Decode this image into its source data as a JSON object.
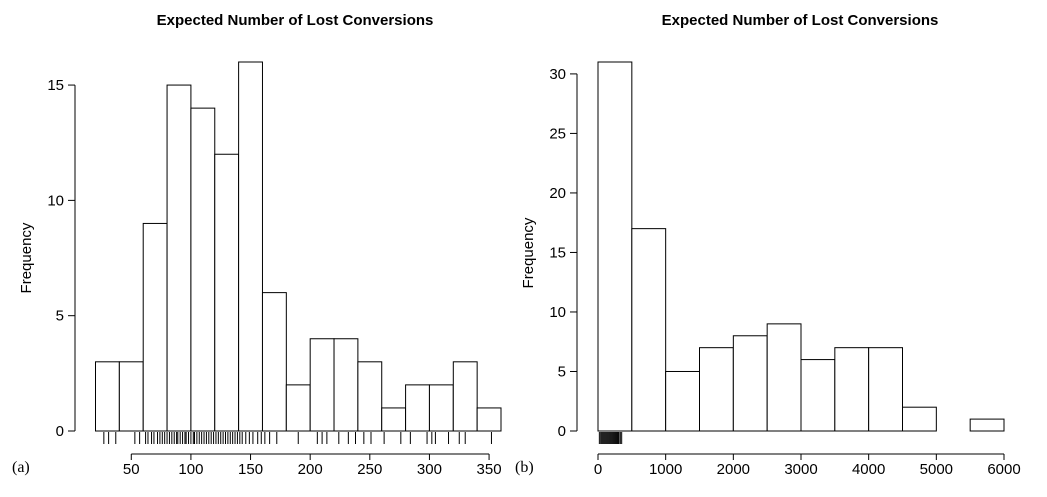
{
  "chart_data": [
    {
      "type": "histogram",
      "title": "Expected Number of Lost Conversions",
      "ylabel": "Frequency",
      "xlabel": "",
      "panel_label": "(a)",
      "bin_width": 20,
      "bins_start": 20,
      "bin_edges": [
        20,
        40,
        60,
        80,
        100,
        120,
        140,
        160,
        180,
        200,
        220,
        240,
        260,
        280,
        300,
        320,
        340,
        360
      ],
      "counts": [
        3,
        3,
        9,
        15,
        14,
        12,
        16,
        6,
        2,
        4,
        4,
        3,
        1,
        2,
        2,
        3,
        1
      ],
      "xlim": [
        20,
        360
      ],
      "ylim": [
        0,
        16
      ],
      "x_ticks": [
        50,
        100,
        150,
        200,
        250,
        300,
        350
      ],
      "y_ticks": [
        0,
        5,
        10,
        15
      ],
      "x_tick_labels": [
        "50",
        "100",
        "150",
        "200",
        "250",
        "300",
        "350"
      ],
      "y_tick_labels": [
        "0",
        "5",
        "10",
        "15"
      ],
      "rug": [
        27,
        31,
        37,
        53,
        57,
        62,
        64,
        67,
        69,
        72,
        74,
        76,
        78,
        80,
        82,
        84,
        86,
        88,
        89,
        91,
        93,
        95,
        96,
        98,
        100,
        102,
        103,
        105,
        107,
        109,
        111,
        113,
        115,
        117,
        119,
        121,
        123,
        125,
        127,
        129,
        131,
        133,
        135,
        137,
        139,
        141,
        143,
        146,
        149,
        152,
        156,
        159,
        162,
        166,
        172,
        190,
        206,
        210,
        214,
        224,
        232,
        238,
        245,
        251,
        262,
        276,
        284,
        298,
        302,
        305,
        316,
        325,
        330,
        352
      ]
    },
    {
      "type": "histogram",
      "title": "Expected Number of Lost Conversions",
      "ylabel": "Frequency",
      "xlabel": "",
      "panel_label": "(b)",
      "bin_width": 500,
      "bins_start": 0,
      "bin_edges": [
        0,
        500,
        1000,
        1500,
        2000,
        2500,
        3000,
        3500,
        4000,
        4500,
        5000,
        5500,
        6000
      ],
      "counts": [
        31,
        17,
        5,
        7,
        8,
        9,
        6,
        7,
        7,
        2,
        0,
        1
      ],
      "xlim": [
        0,
        6000
      ],
      "ylim": [
        0,
        31
      ],
      "x_ticks": [
        0,
        1000,
        2000,
        3000,
        4000,
        5000,
        6000
      ],
      "y_ticks": [
        0,
        5,
        10,
        15,
        20,
        25,
        30
      ],
      "x_tick_labels": [
        "0",
        "1000",
        "2000",
        "3000",
        "4000",
        "5000",
        "6000"
      ],
      "y_tick_labels": [
        "0",
        "5",
        "10",
        "15",
        "20",
        "25",
        "30"
      ],
      "rug": [
        20,
        40,
        55,
        70,
        85,
        100,
        115,
        130,
        145,
        160,
        175,
        190,
        205,
        220,
        235,
        250,
        265,
        280,
        295,
        310,
        330,
        350
      ]
    }
  ]
}
